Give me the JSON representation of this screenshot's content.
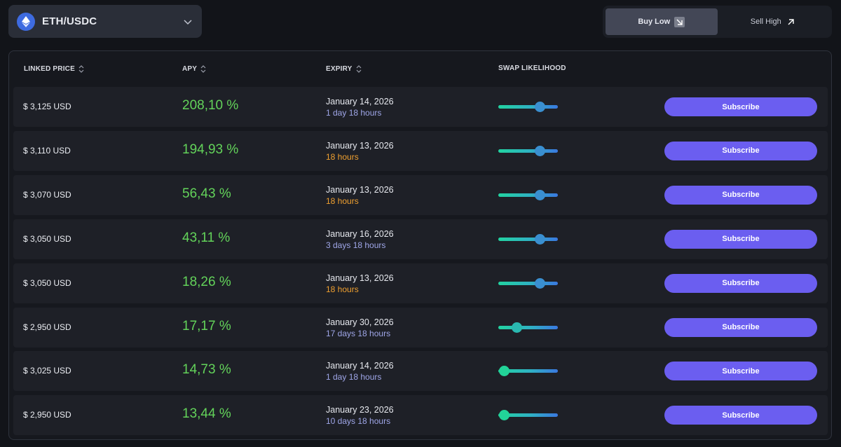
{
  "pair_selector": {
    "label": "ETH/USDC",
    "icon": "eth-usdc-pair-icon"
  },
  "toggle": {
    "buy_low": {
      "label": "Buy Low",
      "icon": "arrow-down-right-icon",
      "active": true
    },
    "sell_high": {
      "label": "Sell High",
      "icon": "arrow-up-right-icon",
      "active": false
    }
  },
  "table": {
    "headers": {
      "linked_price": "LINKED PRICE",
      "apy": "APY",
      "expiry": "EXPIRY",
      "swap_likelihood": "SWAP LIKELIHOOD"
    },
    "button_label": "Subscribe",
    "rows": [
      {
        "price": "$ 3,125 USD",
        "apy": "208,10 %",
        "date": "January 14, 2026",
        "relative": "1 day 18 hours",
        "relative_color": "blue",
        "likelihood": 0.7
      },
      {
        "price": "$ 3,110 USD",
        "apy": "194,93 %",
        "date": "January 13, 2026",
        "relative": "18 hours",
        "relative_color": "orange",
        "likelihood": 0.7
      },
      {
        "price": "$ 3,070 USD",
        "apy": "56,43 %",
        "date": "January 13, 2026",
        "relative": "18 hours",
        "relative_color": "orange",
        "likelihood": 0.7
      },
      {
        "price": "$ 3,050 USD",
        "apy": "43,11 %",
        "date": "January 16, 2026",
        "relative": "3 days 18 hours",
        "relative_color": "blue",
        "likelihood": 0.7
      },
      {
        "price": "$ 3,050 USD",
        "apy": "18,26 %",
        "date": "January 13, 2026",
        "relative": "18 hours",
        "relative_color": "orange",
        "likelihood": 0.7
      },
      {
        "price": "$ 2,950 USD",
        "apy": "17,17 %",
        "date": "January 30, 2026",
        "relative": "17 days 18 hours",
        "relative_color": "blue",
        "likelihood": 0.31
      },
      {
        "price": "$ 3,025 USD",
        "apy": "14,73 %",
        "date": "January 14, 2026",
        "relative": "1 day 18 hours",
        "relative_color": "blue",
        "likelihood": 0.1
      },
      {
        "price": "$ 2,950 USD",
        "apy": "13,44 %",
        "date": "January 23, 2026",
        "relative": "10 days 18 hours",
        "relative_color": "blue",
        "likelihood": 0.1
      }
    ]
  },
  "colors": {
    "accent_button": "#6b5ef0",
    "apy_green": "#63d35a",
    "relative_blue": "#9fa6e8",
    "relative_orange": "#f0a030"
  }
}
